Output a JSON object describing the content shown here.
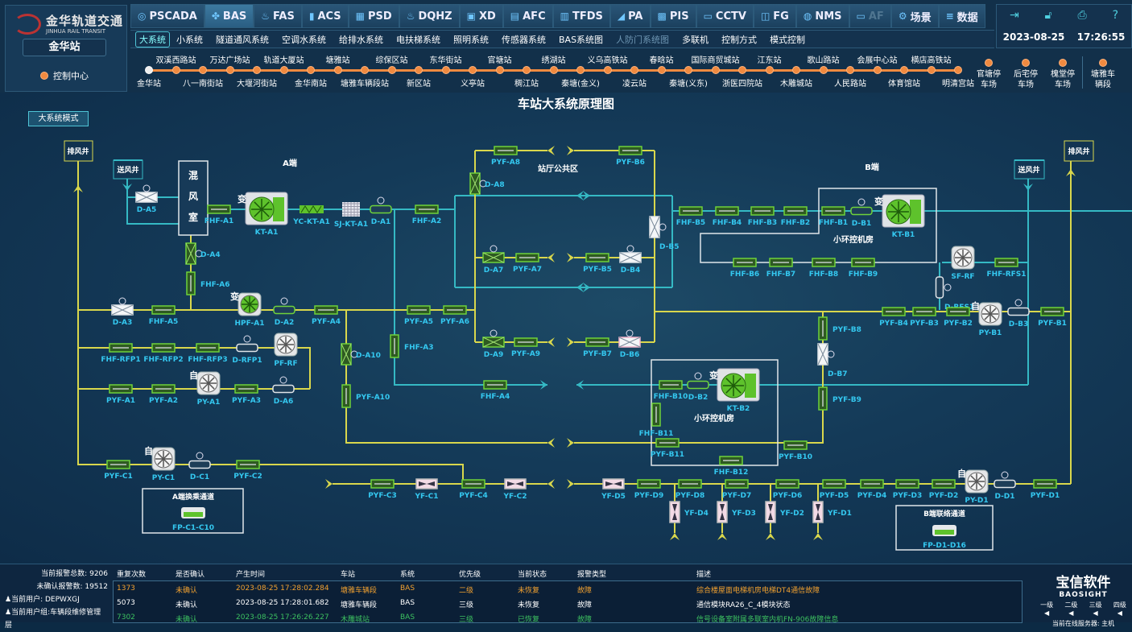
{
  "header": {
    "logo_cn": "金华轨道交通",
    "logo_en": "JINHUA RAIL TRANSIT",
    "station": "金华站",
    "control_center": "控制中心",
    "tabs": [
      {
        "label": "PSCADA",
        "icon": "power-icon"
      },
      {
        "label": "BAS",
        "icon": "fan-icon",
        "active": true
      },
      {
        "label": "FAS",
        "icon": "flame-icon"
      },
      {
        "label": "ACS",
        "icon": "door-icon"
      },
      {
        "label": "PSD",
        "icon": "platform-door-icon"
      },
      {
        "label": "DQHZ",
        "icon": "fire-icon"
      },
      {
        "label": "XD",
        "icon": "card-icon"
      },
      {
        "label": "AFC",
        "icon": "ticket-icon"
      },
      {
        "label": "TFDS",
        "icon": "grid-icon"
      },
      {
        "label": "PA",
        "icon": "megaphone-icon"
      },
      {
        "label": "PIS",
        "icon": "display-icon"
      },
      {
        "label": "CCTV",
        "icon": "monitor-icon"
      },
      {
        "label": "FG",
        "icon": "gate-icon"
      },
      {
        "label": "NMS",
        "icon": "globe-icon"
      },
      {
        "label": "AF",
        "icon": "monitor-icon",
        "dim": true
      },
      {
        "label": "场景",
        "icon": "gears-icon"
      },
      {
        "label": "数据",
        "icon": "database-icon"
      }
    ],
    "subtabs": [
      {
        "label": "大系统",
        "active": true
      },
      {
        "label": "小系统"
      },
      {
        "label": "隧道通风系统"
      },
      {
        "label": "空调水系统"
      },
      {
        "label": "给排水系统"
      },
      {
        "label": "电扶梯系统"
      },
      {
        "label": "照明系统"
      },
      {
        "label": "传感器系统"
      },
      {
        "label": "BAS系统图"
      },
      {
        "label": "人防门系统图",
        "dim": true
      },
      {
        "label": "多联机"
      },
      {
        "label": "控制方式"
      },
      {
        "label": "模式控制"
      }
    ],
    "date": "2023-08-25",
    "time": "17:26:55",
    "right_icons": [
      "logout-icon",
      "unlock-icon",
      "print-icon",
      "help-icon"
    ],
    "stations": [
      "金华站",
      "双溪西路站",
      "八一南街站",
      "万达广场站",
      "大堰河街站",
      "轨道大厦站",
      "金华南站",
      "塘雅站",
      "塘雅车辆段站",
      "综保区站",
      "新区站",
      "东华街站",
      "义亭站",
      "官塘站",
      "稠江站",
      "绣湖站",
      "秦塘(金义)",
      "义乌高铁站",
      "凌云站",
      "春晗站",
      "秦塘(义东)",
      "国际商贸城站",
      "浙医四院站",
      "江东站",
      "木雕城站",
      "歌山路站",
      "人民路站",
      "会展中心站",
      "体育馆站",
      "横店高铁站",
      "明清宫站"
    ],
    "depots": [
      "官塘停\n车场",
      "后宅停\n车场",
      "槐堂停\n车场"
    ],
    "yard": "塘雅车\n辆段"
  },
  "diagram": {
    "title": "车站大系统原理图",
    "mode_button": "大系统模式",
    "labels": {
      "a_end": "A端",
      "b_end": "B端",
      "hall": "站厅公共区",
      "machine_room_b1": "小环控机房",
      "machine_room_b2": "小环控机房",
      "mix_room": "混风室",
      "supply_shaft_a": "送风井",
      "exhaust_shaft_a": "排风井",
      "supply_shaft_b": "送风井",
      "exhaust_shaft_b": "排风井",
      "transfer_a": "A端换乘通道",
      "link_b": "B端联络通道"
    },
    "colors": {
      "supply": "#35b9c4",
      "exhaust": "#d9d74c",
      "running": "#5ec22c",
      "stopped": "#d8dde2",
      "fault": "#e8b4c8"
    },
    "components": [
      {
        "id": "D-A5",
        "type": "damper",
        "state": "stopped"
      },
      {
        "id": "FHF-A1",
        "type": "filter"
      },
      {
        "id": "KT-A1",
        "type": "ahu",
        "badge": "变"
      },
      {
        "id": "YC-KT-A1",
        "type": "silencer"
      },
      {
        "id": "SJ-KT-A1",
        "type": "coil"
      },
      {
        "id": "D-A1",
        "type": "motor-damper",
        "state": "running"
      },
      {
        "id": "FHF-A2",
        "type": "filter"
      },
      {
        "id": "D-A4",
        "type": "damper",
        "state": "running"
      },
      {
        "id": "FHF-A6",
        "type": "filter"
      },
      {
        "id": "D-A3",
        "type": "damper",
        "state": "stopped"
      },
      {
        "id": "FHF-A5",
        "type": "filter"
      },
      {
        "id": "HPF-A1",
        "type": "fan",
        "state": "running",
        "badge": "变"
      },
      {
        "id": "D-A2",
        "type": "motor-damper",
        "state": "running"
      },
      {
        "id": "PYF-A4",
        "type": "filter"
      },
      {
        "id": "PYF-A5",
        "type": "filter"
      },
      {
        "id": "PYF-A6",
        "type": "filter"
      },
      {
        "id": "FHF-RFP1",
        "type": "filter"
      },
      {
        "id": "FHF-RFP2",
        "type": "filter"
      },
      {
        "id": "FHF-RFP3",
        "type": "filter"
      },
      {
        "id": "D-RFP1",
        "type": "motor-damper",
        "state": "stopped"
      },
      {
        "id": "PF-RF",
        "type": "fan",
        "state": "stopped"
      },
      {
        "id": "PYF-A1",
        "type": "filter"
      },
      {
        "id": "PYF-A2",
        "type": "filter"
      },
      {
        "id": "PY-A1",
        "type": "fan",
        "state": "stopped",
        "badge": "自"
      },
      {
        "id": "PYF-A3",
        "type": "filter"
      },
      {
        "id": "D-A6",
        "type": "motor-damper",
        "state": "stopped"
      },
      {
        "id": "D-A10",
        "type": "damper",
        "state": "running"
      },
      {
        "id": "PYF-A10",
        "type": "filter"
      },
      {
        "id": "FHF-A3",
        "type": "filter"
      },
      {
        "id": "FHF-A4",
        "type": "filter"
      },
      {
        "id": "PYF-A8",
        "type": "filter"
      },
      {
        "id": "D-A8",
        "type": "damper",
        "state": "running"
      },
      {
        "id": "D-A7",
        "type": "damper",
        "state": "running"
      },
      {
        "id": "PYF-A7",
        "type": "filter"
      },
      {
        "id": "D-A9",
        "type": "damper",
        "state": "running"
      },
      {
        "id": "PYF-A9",
        "type": "filter"
      },
      {
        "id": "PYF-B6",
        "type": "filter"
      },
      {
        "id": "D-B5",
        "type": "damper",
        "state": "stopped"
      },
      {
        "id": "PYF-B5",
        "type": "filter"
      },
      {
        "id": "D-B4",
        "type": "damper",
        "state": "stopped"
      },
      {
        "id": "PYF-B7",
        "type": "filter"
      },
      {
        "id": "D-B6",
        "type": "damper",
        "state": "fault"
      },
      {
        "id": "FHF-B5",
        "type": "filter"
      },
      {
        "id": "FHF-B4",
        "type": "filter"
      },
      {
        "id": "FHF-B3",
        "type": "filter"
      },
      {
        "id": "FHF-B2",
        "type": "filter"
      },
      {
        "id": "FHF-B1",
        "type": "filter"
      },
      {
        "id": "D-B1",
        "type": "motor-damper",
        "state": "running"
      },
      {
        "id": "KT-B1",
        "type": "ahu",
        "badge": "变"
      },
      {
        "id": "FHF-B6",
        "type": "filter"
      },
      {
        "id": "FHF-B7",
        "type": "filter"
      },
      {
        "id": "FHF-B8",
        "type": "filter"
      },
      {
        "id": "FHF-B9",
        "type": "filter"
      },
      {
        "id": "SF-RF",
        "type": "fan",
        "state": "stopped"
      },
      {
        "id": "FHF-RFS1",
        "type": "filter"
      },
      {
        "id": "D-RFS1",
        "type": "motor-damper",
        "state": "stopped"
      },
      {
        "id": "PYF-B4",
        "type": "filter"
      },
      {
        "id": "PYF-B3",
        "type": "filter"
      },
      {
        "id": "PYF-B2",
        "type": "filter"
      },
      {
        "id": "PY-B1",
        "type": "fan",
        "state": "stopped",
        "badge": "自"
      },
      {
        "id": "D-B3",
        "type": "motor-damper",
        "state": "stopped"
      },
      {
        "id": "PYF-B1",
        "type": "filter"
      },
      {
        "id": "PYF-B8",
        "type": "filter"
      },
      {
        "id": "D-B7",
        "type": "damper",
        "state": "stopped"
      },
      {
        "id": "PYF-B9",
        "type": "filter"
      },
      {
        "id": "FHF-B10",
        "type": "filter"
      },
      {
        "id": "D-B2",
        "type": "motor-damper",
        "state": "running"
      },
      {
        "id": "KT-B2",
        "type": "ahu",
        "badge": "变"
      },
      {
        "id": "FHF-B11",
        "type": "filter"
      },
      {
        "id": "PYF-B11",
        "type": "filter"
      },
      {
        "id": "FHF-B12",
        "type": "filter"
      },
      {
        "id": "PYF-B10",
        "type": "filter"
      },
      {
        "id": "PYF-C1",
        "type": "filter"
      },
      {
        "id": "PY-C1",
        "type": "fan",
        "state": "stopped",
        "badge": "自"
      },
      {
        "id": "D-C1",
        "type": "motor-damper",
        "state": "stopped"
      },
      {
        "id": "PYF-C2",
        "type": "filter"
      },
      {
        "id": "PYF-C3",
        "type": "filter"
      },
      {
        "id": "YF-C1",
        "type": "valve"
      },
      {
        "id": "PYF-C4",
        "type": "filter"
      },
      {
        "id": "YF-C2",
        "type": "valve"
      },
      {
        "id": "YF-D5",
        "type": "valve"
      },
      {
        "id": "PYF-D9",
        "type": "filter"
      },
      {
        "id": "PYF-D8",
        "type": "filter"
      },
      {
        "id": "PYF-D7",
        "type": "filter"
      },
      {
        "id": "PYF-D6",
        "type": "filter"
      },
      {
        "id": "PYF-D5",
        "type": "filter"
      },
      {
        "id": "PYF-D4",
        "type": "filter"
      },
      {
        "id": "PYF-D3",
        "type": "filter"
      },
      {
        "id": "PYF-D2",
        "type": "filter"
      },
      {
        "id": "PY-D1",
        "type": "fan",
        "state": "stopped",
        "badge": "自"
      },
      {
        "id": "D-D1",
        "type": "motor-damper",
        "state": "stopped"
      },
      {
        "id": "PYF-D1",
        "type": "filter"
      },
      {
        "id": "YF-D4",
        "type": "valve"
      },
      {
        "id": "YF-D3",
        "type": "valve"
      },
      {
        "id": "YF-D2",
        "type": "valve"
      },
      {
        "id": "YF-D1",
        "type": "valve"
      },
      {
        "id": "FP-C1-C10",
        "type": "fan-coil"
      },
      {
        "id": "FP-D1-D16",
        "type": "fan-coil"
      }
    ]
  },
  "alarms": {
    "total_label": "当前报警总数:",
    "total": "9206",
    "unack_label": "未确认报警数:",
    "unack": "19512",
    "user_label": "当前用户:",
    "user": "DEPWXGJ",
    "group_label": "当前用户组:",
    "group": "车辆段维修管理层",
    "columns": [
      "重复次数",
      "是否确认",
      "产生时间",
      "车站",
      "系统",
      "优先级",
      "当前状态",
      "报警类型",
      "描述"
    ],
    "rows": [
      {
        "color": "#f0a030",
        "cells": [
          "1373",
          "未确认",
          "2023-08-25 17:28:02.284",
          "塘雅车辆段",
          "BAS",
          "二级",
          "未恢复",
          "故障",
          "综合楼屋面电梯机房电梯DT4通信故障"
        ]
      },
      {
        "color": "#ffffff",
        "cells": [
          "5073",
          "未确认",
          "2023-08-25 17:28:01.682",
          "塘雅车辆段",
          "BAS",
          "三级",
          "未恢复",
          "故障",
          "通信模块RA26_C_4模块状态"
        ]
      },
      {
        "color": "#3cc060",
        "cells": [
          "7302",
          "未确认",
          "2023-08-25 17:26:26.227",
          "木雕城站",
          "BAS",
          "三级",
          "已恢复",
          "故障",
          "信号设备室附属多联室内机FN-906故障信息"
        ]
      }
    ]
  },
  "brand": {
    "name_cn": "宝信软件",
    "name_en": "BAOSIGHT",
    "levels": [
      "一级",
      "二级",
      "三级",
      "四级"
    ],
    "server": "当前在线服务器: 主机"
  }
}
